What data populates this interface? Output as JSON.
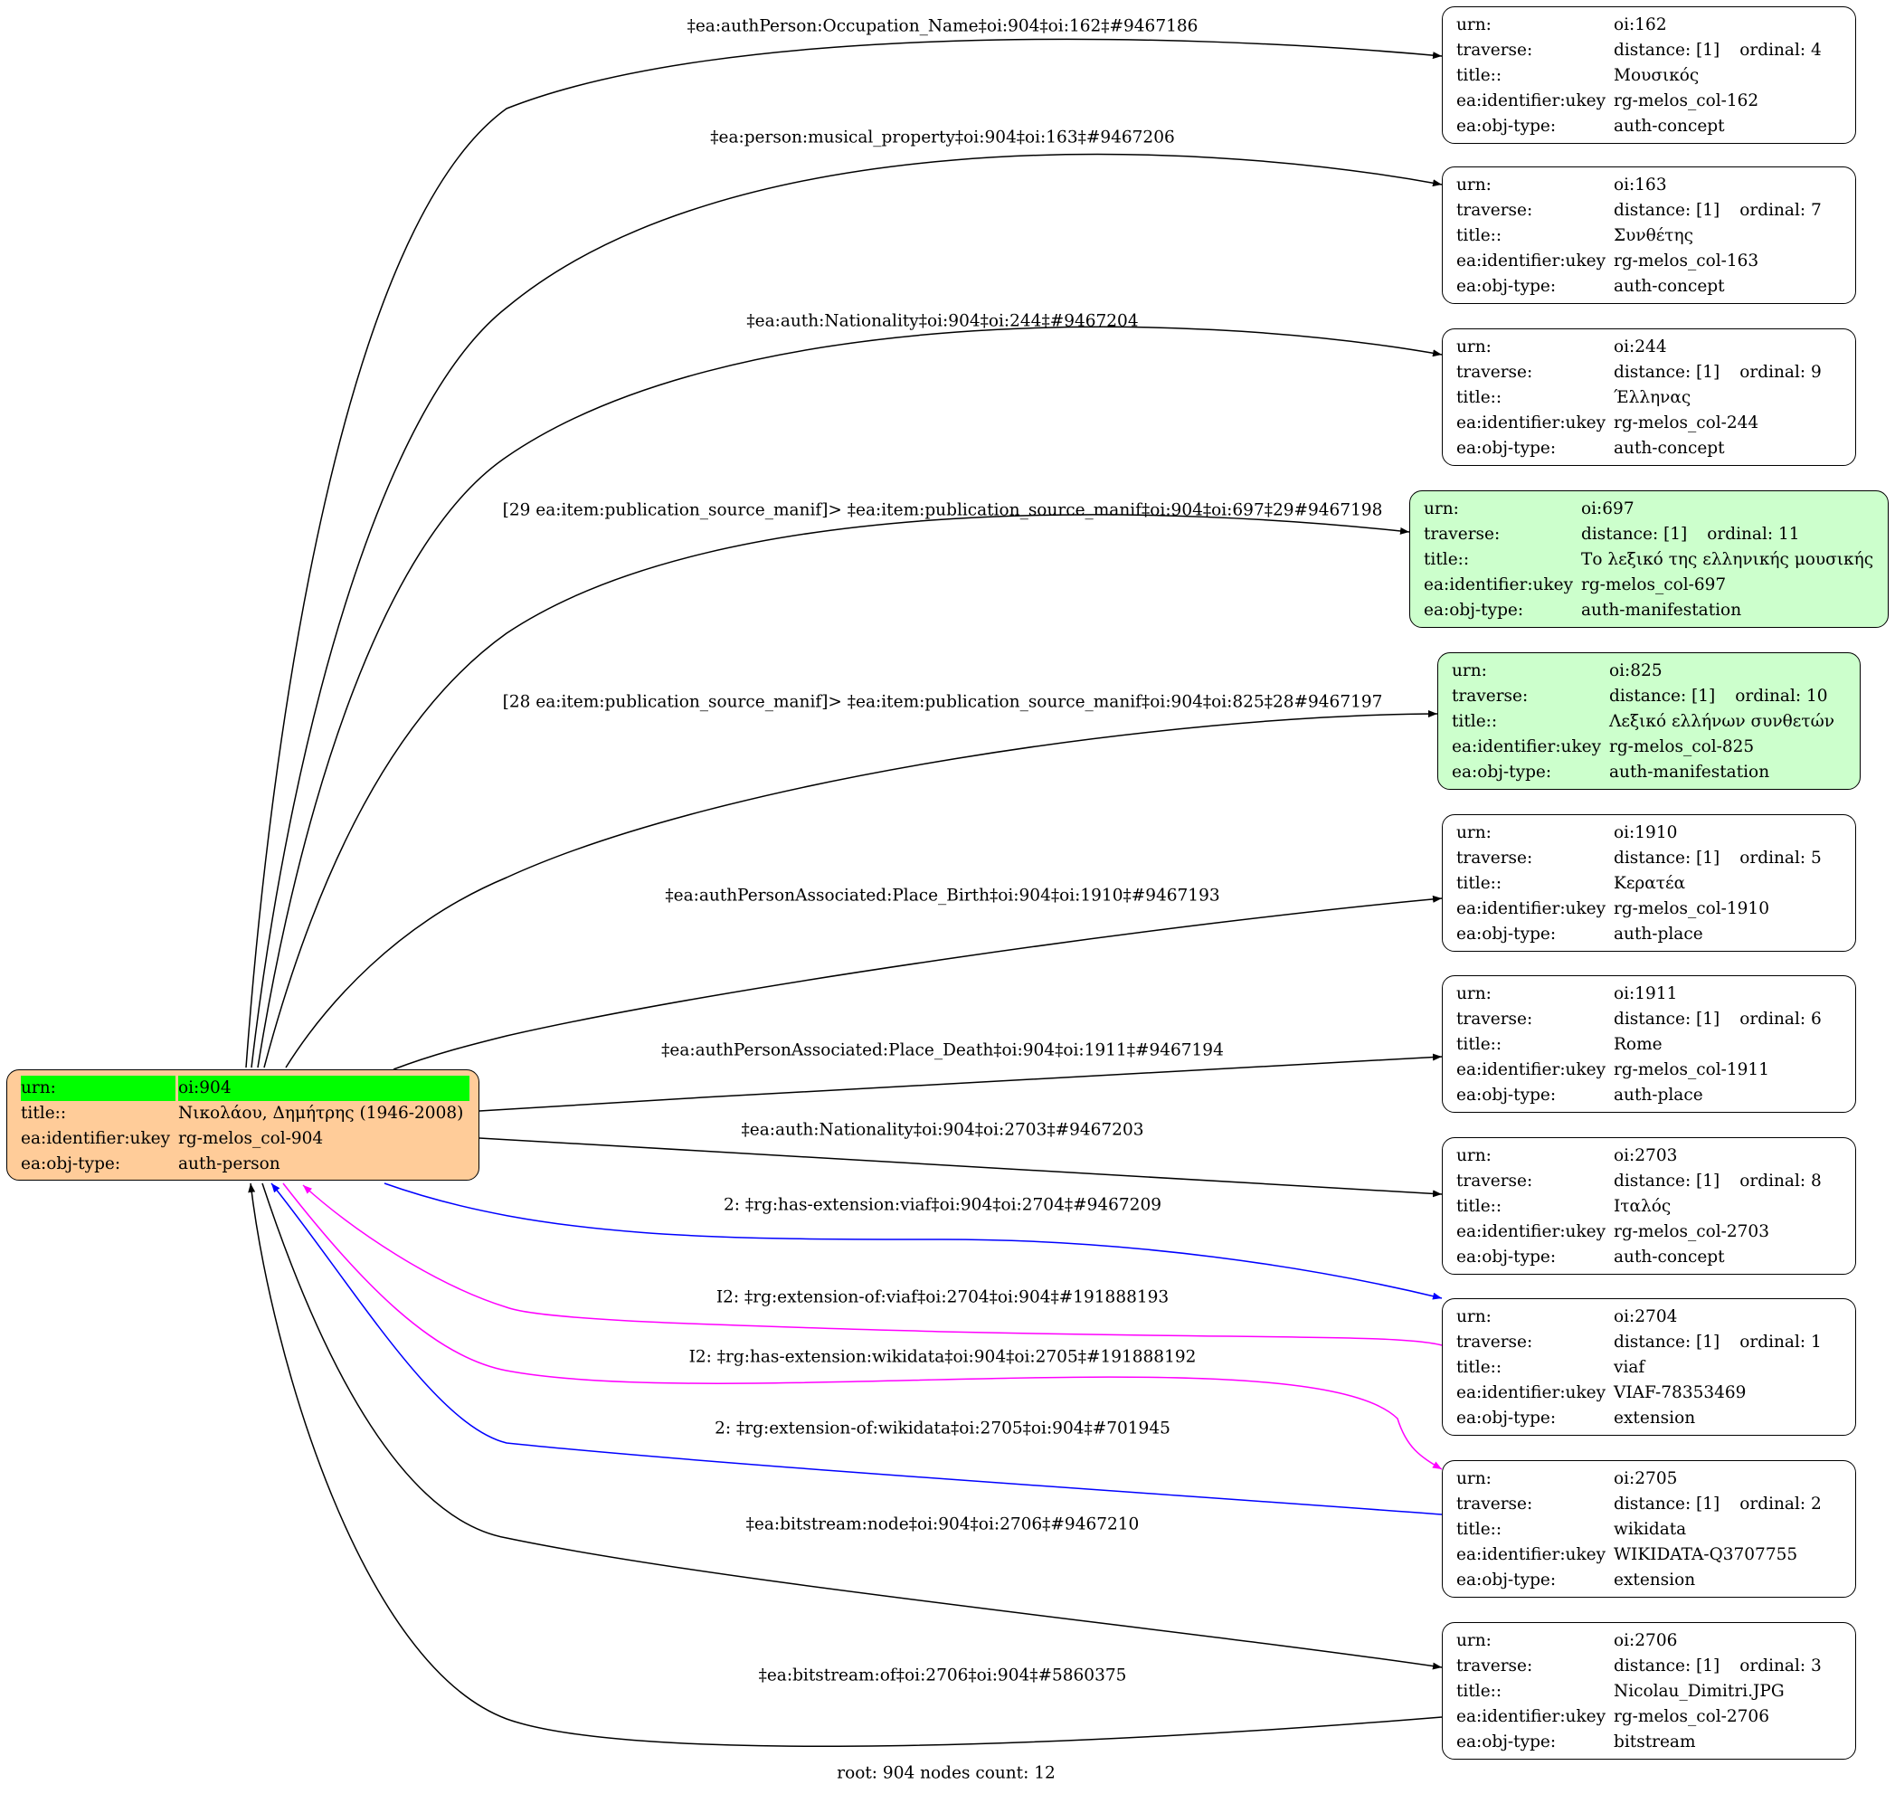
{
  "root": {
    "fill": "#ffcc99",
    "highlight": "#00ff00",
    "rows": [
      {
        "key": "urn:",
        "value": "oi:904"
      },
      {
        "key": "title::",
        "value": "Νικολάου, Δημήτρης (1946-2008)"
      },
      {
        "key": "ea:identifier:ukey",
        "value": "rg-melos_col-904"
      },
      {
        "key": "ea:obj-type:",
        "value": "auth-person"
      }
    ]
  },
  "nodes": [
    {
      "urn": "oi:162",
      "distance": "distance: [1]",
      "ordinal": "ordinal: 4",
      "title": "Μουσικός",
      "ukey": "rg-melos_col-162",
      "type": "auth-concept",
      "fill": "#ffffff"
    },
    {
      "urn": "oi:163",
      "distance": "distance: [1]",
      "ordinal": "ordinal: 7",
      "title": "Συνθέτης",
      "ukey": "rg-melos_col-163",
      "type": "auth-concept",
      "fill": "#ffffff"
    },
    {
      "urn": "oi:244",
      "distance": "distance: [1]",
      "ordinal": "ordinal: 9",
      "title": "Έλληνας",
      "ukey": "rg-melos_col-244",
      "type": "auth-concept",
      "fill": "#ffffff"
    },
    {
      "urn": "oi:697",
      "distance": "distance: [1]",
      "ordinal": "ordinal: 11",
      "title": "Το λεξικό της ελληνικής μουσικής",
      "ukey": "rg-melos_col-697",
      "type": "auth-manifestation",
      "fill": "#ccffcc"
    },
    {
      "urn": "oi:825",
      "distance": "distance: [1]",
      "ordinal": "ordinal: 10",
      "title": "Λεξικό ελλήνων συνθετών",
      "ukey": "rg-melos_col-825",
      "type": "auth-manifestation",
      "fill": "#ccffcc"
    },
    {
      "urn": "oi:1910",
      "distance": "distance: [1]",
      "ordinal": "ordinal: 5",
      "title": "Κερατέα",
      "ukey": "rg-melos_col-1910",
      "type": "auth-place",
      "fill": "#ffffff"
    },
    {
      "urn": "oi:1911",
      "distance": "distance: [1]",
      "ordinal": "ordinal: 6",
      "title": "Rome",
      "ukey": "rg-melos_col-1911",
      "type": "auth-place",
      "fill": "#ffffff"
    },
    {
      "urn": "oi:2703",
      "distance": "distance: [1]",
      "ordinal": "ordinal: 8",
      "title": "Ιταλός",
      "ukey": "rg-melos_col-2703",
      "type": "auth-concept",
      "fill": "#ffffff"
    },
    {
      "urn": "oi:2704",
      "distance": "distance: [1]",
      "ordinal": "ordinal: 1",
      "title": "viaf",
      "ukey": "VIAF-78353469",
      "type": "extension",
      "fill": "#ffffff"
    },
    {
      "urn": "oi:2705",
      "distance": "distance: [1]",
      "ordinal": "ordinal: 2",
      "title": "wikidata",
      "ukey": "WIKIDATA-Q3707755",
      "type": "extension",
      "fill": "#ffffff"
    },
    {
      "urn": "oi:2706",
      "distance": "distance: [1]",
      "ordinal": "ordinal: 3",
      "title": "Nicolau_Dimitri.JPG",
      "ukey": "rg-melos_col-2706",
      "type": "bitstream",
      "fill": "#ffffff"
    }
  ],
  "row_keys": {
    "urn": "urn:",
    "traverse": "traverse:",
    "title": "title::",
    "ukey": "ea:identifier:ukey",
    "type": "ea:obj-type:"
  },
  "edges": [
    {
      "label": "‡ea:authPerson:Occupation_Name‡oi:904‡oi:162‡#9467186",
      "color": "#000000"
    },
    {
      "label": "‡ea:person:musical_property‡oi:904‡oi:163‡#9467206",
      "color": "#000000"
    },
    {
      "label": "‡ea:auth:Nationality‡oi:904‡oi:244‡#9467204",
      "color": "#000000"
    },
    {
      "label": "[29 ea:item:publication_source_manif]> ‡ea:item:publication_source_manif‡oi:904‡oi:697‡29#9467198",
      "color": "#000000"
    },
    {
      "label": "[28 ea:item:publication_source_manif]> ‡ea:item:publication_source_manif‡oi:904‡oi:825‡28#9467197",
      "color": "#000000"
    },
    {
      "label": "‡ea:authPersonAssociated:Place_Birth‡oi:904‡oi:1910‡#9467193",
      "color": "#000000"
    },
    {
      "label": "‡ea:authPersonAssociated:Place_Death‡oi:904‡oi:1911‡#9467194",
      "color": "#000000"
    },
    {
      "label": "‡ea:auth:Nationality‡oi:904‡oi:2703‡#9467203",
      "color": "#000000"
    },
    {
      "label": "2: ‡rg:has-extension:viaf‡oi:904‡oi:2704‡#9467209",
      "color": "#0000ff"
    },
    {
      "label": "I2: ‡rg:extension-of:viaf‡oi:2704‡oi:904‡#191888193",
      "color": "#ff00ff"
    },
    {
      "label": "I2: ‡rg:has-extension:wikidata‡oi:904‡oi:2705‡#191888192",
      "color": "#ff00ff"
    },
    {
      "label": "2: ‡rg:extension-of:wikidata‡oi:2705‡oi:904‡#701945",
      "color": "#0000ff"
    },
    {
      "label": "‡ea:bitstream:node‡oi:904‡oi:2706‡#9467210",
      "color": "#000000"
    },
    {
      "label": "‡ea:bitstream:of‡oi:2706‡oi:904‡#5860375",
      "color": "#000000"
    }
  ],
  "caption": "root: 904 nodes count: 12"
}
